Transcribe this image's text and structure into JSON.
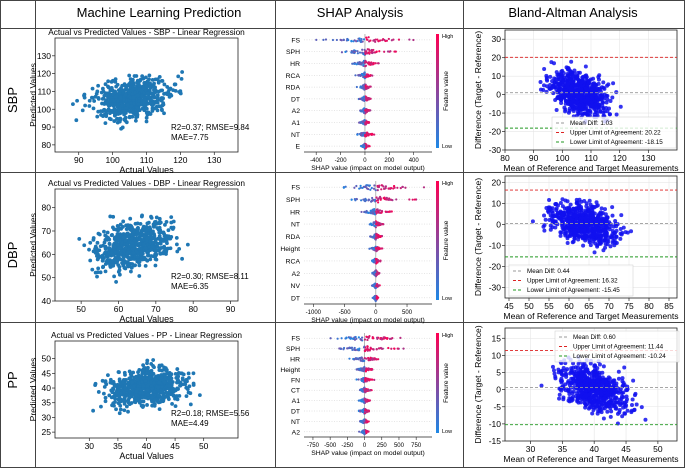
{
  "columns": [
    "Machine Learning Prediction",
    "SHAP Analysis",
    "Bland-Altman Analysis"
  ],
  "rows": [
    "SBP",
    "DBP",
    "PP"
  ],
  "colors": {
    "scatter": "#1f77b4",
    "ba": "#1010ee",
    "shap_low": "#1e88e5",
    "shap_high": "#ff0052",
    "mean": "#999999",
    "upper": "#dd2222",
    "lower": "#229922"
  },
  "chart_data": [
    {
      "type": "scatter",
      "row": "SBP",
      "title": "Actual vs Predicted Values - SBP - Linear Regression",
      "xlabel": "Actual Values",
      "ylabel": "Predicted Values",
      "xlim": [
        83,
        137
      ],
      "ylim": [
        76,
        140
      ],
      "xticks": [
        90,
        100,
        110,
        120,
        130
      ],
      "yticks": [
        80,
        90,
        100,
        110,
        120,
        130
      ],
      "stats": [
        "R2=0.37; RMSE=9.84",
        "MAE=7.75"
      ],
      "center": [
        106,
        106
      ],
      "spread_x": 10,
      "slope": 0.37,
      "noise": 9.5,
      "n": 650
    },
    {
      "type": "scatter",
      "row": "DBP",
      "title": "Actual vs Predicted Values - DBP - Linear Regression",
      "xlabel": "Actual Values",
      "ylabel": "Predicted Values",
      "xlim": [
        43,
        92
      ],
      "ylim": [
        40,
        88
      ],
      "xticks": [
        50,
        60,
        70,
        80,
        90
      ],
      "yticks": [
        40,
        50,
        60,
        70,
        80
      ],
      "stats": [
        "R2=0.30; RMSE=8.11",
        "MAE=6.35"
      ],
      "center": [
        64,
        64
      ],
      "spread_x": 9,
      "slope": 0.3,
      "noise": 8.5,
      "n": 650
    },
    {
      "type": "scatter",
      "row": "PP",
      "title": "Actual vs Predicted Values - PP - Linear Regression",
      "xlabel": "Actual Values",
      "ylabel": "Predicted Values",
      "xlim": [
        24,
        56
      ],
      "ylim": [
        23,
        56
      ],
      "xticks": [
        30,
        35,
        40,
        45,
        50
      ],
      "yticks": [
        25,
        30,
        35,
        40,
        45,
        50
      ],
      "stats": [
        "R2=0.18; RMSE=5.56",
        "MAE=4.49"
      ],
      "center": [
        40,
        40
      ],
      "spread_x": 6,
      "slope": 0.18,
      "noise": 5.5,
      "n": 650
    },
    {
      "type": "shap-beeswarm",
      "row": "SBP",
      "features": [
        "FS",
        "SPH",
        "HR",
        "RCA",
        "RDA",
        "DT",
        "A2",
        "A1",
        "NT",
        "E"
      ],
      "spreads": [
        470,
        330,
        150,
        80,
        70,
        60,
        55,
        50,
        90,
        40
      ],
      "xlim": [
        -500,
        550
      ],
      "xticks": [
        -400,
        -200,
        0,
        200,
        400
      ],
      "xlabel": "SHAP value (impact on model output)",
      "colorbar": {
        "label": "Feature value",
        "high": "High",
        "low": "Low"
      }
    },
    {
      "type": "shap-beeswarm",
      "row": "DBP",
      "features": [
        "FS",
        "SPH",
        "HR",
        "NT",
        "RDA",
        "Height",
        "RCA",
        "A2",
        "NV",
        "DT"
      ],
      "spreads": [
        950,
        700,
        300,
        150,
        130,
        110,
        100,
        80,
        70,
        60
      ],
      "xlim": [
        -1150,
        900
      ],
      "xticks": [
        -1000,
        -500,
        0,
        500
      ],
      "xlabel": "SHAP value (impact on model output)",
      "colorbar": {
        "label": "Feature value",
        "high": "High",
        "low": "Low"
      }
    },
    {
      "type": "shap-beeswarm",
      "row": "PP",
      "features": [
        "FS",
        "SPH",
        "HR",
        "Height",
        "FN",
        "CT",
        "A1",
        "DT",
        "NT",
        "A2"
      ],
      "spreads": [
        750,
        650,
        300,
        170,
        150,
        120,
        110,
        100,
        90,
        80
      ],
      "xlim": [
        -880,
        980
      ],
      "xticks": [
        -750,
        -500,
        -250,
        0,
        250,
        500,
        750
      ],
      "xlabel": "SHAP value (impact on model output)",
      "colorbar": {
        "label": "Feature value",
        "high": "High",
        "low": "Low"
      }
    },
    {
      "type": "bland-altman",
      "row": "SBP",
      "xlabel": "Mean of Reference and Target Measurements",
      "ylabel": "Difference (Target - Reference)",
      "xlim": [
        80,
        140
      ],
      "ylim": [
        -30,
        35
      ],
      "xticks": [
        80,
        90,
        100,
        110,
        120,
        130
      ],
      "yticks": [
        -30,
        -20,
        -10,
        0,
        10,
        20,
        30
      ],
      "mean_diff": 1.03,
      "upper": 20.22,
      "lower": -18.15,
      "legend": [
        "Mean Diff: 1.03",
        "Upper Limit of Agreement: 20.22",
        "Lower Limit of Agreement: -18.15"
      ],
      "legend_pos": "bottom-right",
      "center": 106,
      "spread_x": 9,
      "noise": 10,
      "n": 650
    },
    {
      "type": "bland-altman",
      "row": "DBP",
      "xlabel": "Mean of Reference and Target Measurements",
      "ylabel": "Difference (Target - Reference)",
      "xlim": [
        44,
        87
      ],
      "ylim": [
        -35,
        23
      ],
      "xticks": [
        45,
        50,
        55,
        60,
        65,
        70,
        75,
        80,
        85
      ],
      "yticks": [
        -30,
        -20,
        -10,
        0,
        10,
        20
      ],
      "mean_diff": 0.44,
      "upper": 16.32,
      "lower": -15.45,
      "legend": [
        "Mean Diff: 0.44",
        "Upper Limit of Agreement: 16.32",
        "Lower Limit of Agreement: -15.45"
      ],
      "legend_pos": "bottom-left",
      "center": 64,
      "spread_x": 8,
      "noise": 8.5,
      "n": 650
    },
    {
      "type": "bland-altman",
      "row": "PP",
      "xlabel": "Mean of Reference and Target Measurements",
      "ylabel": "Difference (Target - Reference)",
      "xlim": [
        26,
        53
      ],
      "ylim": [
        -15,
        18
      ],
      "xticks": [
        30,
        35,
        40,
        45,
        50
      ],
      "yticks": [
        -15,
        -10,
        -5,
        0,
        5,
        10,
        15
      ],
      "mean_diff": 0.6,
      "upper": 11.44,
      "lower": -10.24,
      "legend": [
        "Mean Diff: 0.60",
        "Upper Limit of Agreement: 11.44",
        "Lower Limit of Agreement: -10.24"
      ],
      "legend_pos": "top-center",
      "center": 40,
      "spread_x": 5,
      "noise": 5.5,
      "n": 650
    }
  ]
}
